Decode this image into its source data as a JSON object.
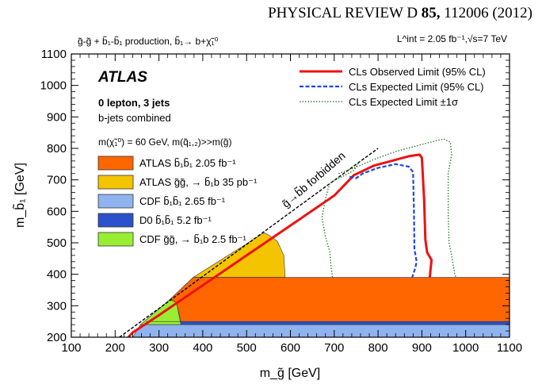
{
  "header": {
    "journal": "PHYSICAL REVIEW D",
    "volume": "85,",
    "article": "112006 (2012)"
  },
  "chart_data": {
    "type": "area",
    "process_label": "g̃-g̃ + b̃₁-b̃₁ production, b̃₁→ b+χ̃₁⁰",
    "lumi_label": "L^int = 2.05 fb⁻¹,√s=7 TeV",
    "experiment": "ATLAS",
    "selection_1": "0 lepton, 3 jets",
    "selection_2": "b-jets combined",
    "assumption": "m(χ̃₁⁰) = 60 GeV, m(q̃₁,₂)>>m(g̃)",
    "forbidden_label": "g̃→b̃b forbidden",
    "xlabel": "m_g̃ [GeV]",
    "ylabel": "m_b̃₁ [GeV]",
    "xlim": [
      100,
      1100
    ],
    "ylim": [
      200,
      1100
    ],
    "x_ticks": [
      100,
      200,
      300,
      400,
      500,
      600,
      700,
      800,
      900,
      1000,
      1100
    ],
    "y_ticks": [
      200,
      300,
      400,
      500,
      600,
      700,
      800,
      900,
      1000,
      1100
    ],
    "line_series": [
      {
        "name": "CLs Observed Limit (95% CL)",
        "color": "#ee1111",
        "dash": "solid",
        "points": [
          [
            230,
            200
          ],
          [
            240,
            215
          ],
          [
            300,
            270
          ],
          [
            400,
            365
          ],
          [
            500,
            460
          ],
          [
            600,
            555
          ],
          [
            700,
            650
          ],
          [
            745,
            715
          ],
          [
            760,
            725
          ],
          [
            790,
            745
          ],
          [
            830,
            760
          ],
          [
            870,
            775
          ],
          [
            895,
            780
          ],
          [
            900,
            770
          ],
          [
            905,
            640
          ],
          [
            908,
            510
          ],
          [
            912,
            470
          ],
          [
            922,
            445
          ],
          [
            920,
            420
          ],
          [
            918,
            390
          ]
        ]
      },
      {
        "name": "CLs Expected Limit (95% CL)",
        "color": "#2244dd",
        "dash": "dashed",
        "points": [
          [
            735,
            710
          ],
          [
            750,
            705
          ],
          [
            765,
            720
          ],
          [
            800,
            738
          ],
          [
            840,
            750
          ],
          [
            870,
            742
          ],
          [
            880,
            725
          ],
          [
            882,
            600
          ],
          [
            883,
            480
          ],
          [
            888,
            440
          ],
          [
            885,
            420
          ],
          [
            878,
            390
          ]
        ]
      },
      {
        "name": "CLs Expected Limit ±1σ",
        "color": "#227722",
        "dash": "dotted",
        "points": [
          [
            710,
            720
          ],
          [
            740,
            735
          ],
          [
            800,
            770
          ],
          [
            840,
            790
          ],
          [
            880,
            805
          ],
          [
            920,
            820
          ],
          [
            950,
            830
          ],
          [
            965,
            820
          ],
          [
            968,
            780
          ],
          [
            960,
            720
          ],
          [
            960,
            600
          ],
          [
            962,
            500
          ],
          [
            968,
            460
          ],
          [
            975,
            400
          ],
          [
            978,
            390
          ]
        ]
      },
      {
        "name": "CLs Expected Limit ±1σ (lower)",
        "color": "#227722",
        "dash": "dotted",
        "points": [
          [
            758,
            760
          ],
          [
            745,
            730
          ],
          [
            690,
            690
          ],
          [
            680,
            640
          ],
          [
            672,
            580
          ],
          [
            680,
            520
          ],
          [
            690,
            470
          ],
          [
            693,
            420
          ],
          [
            696,
            390
          ]
        ]
      }
    ],
    "regions": [
      {
        "name": "CDF b̃₁b̃₁ 2.65 fb⁻¹",
        "color": "#8fb3ee",
        "points": [
          [
            240,
            200
          ],
          [
            1100,
            200
          ],
          [
            1100,
            240
          ],
          [
            258,
            240
          ]
        ]
      },
      {
        "name": "D0 b̃₁b̃₁ 5.2 fb⁻¹",
        "color": "#2a52cc",
        "points": [
          [
            258,
            240
          ],
          [
            1100,
            240
          ],
          [
            1100,
            250
          ],
          [
            270,
            250
          ]
        ]
      },
      {
        "name": "CDF g̃g̃, → b̃₁b 2.5 fb⁻¹",
        "color": "#99ee33",
        "points": [
          [
            258,
            240
          ],
          [
            350,
            240
          ],
          [
            340,
            310
          ],
          [
            325,
            320
          ]
        ]
      },
      {
        "name": "ATLAS g̃g̃, → b̃₁b 35 pb⁻¹",
        "color": "#f5c400",
        "points": [
          [
            378,
            390
          ],
          [
            588,
            390
          ],
          [
            585,
            460
          ],
          [
            570,
            505
          ],
          [
            550,
            525
          ],
          [
            540,
            532
          ]
        ]
      },
      {
        "name": "ATLAS b̃₁b̃₁ 2.05 fb⁻¹",
        "color": "#ff6600",
        "points": [
          [
            270,
            250
          ],
          [
            1100,
            250
          ],
          [
            1100,
            390
          ],
          [
            378,
            390
          ],
          [
            325,
            320
          ],
          [
            340,
            310
          ],
          [
            350,
            250
          ]
        ]
      }
    ],
    "forbidden_boundary": [
      [
        210,
        200
      ],
      [
        800,
        800
      ]
    ],
    "legend_top_right": [
      {
        "label": "CLs Observed Limit (95% CL)",
        "style": "solid",
        "color": "#ee1111"
      },
      {
        "label": "CLs Expected Limit (95% CL)",
        "style": "dashed",
        "color": "#2244dd"
      },
      {
        "label": "CLs Expected Limit ±1σ",
        "style": "dotted",
        "color": "#227722"
      }
    ],
    "legend_left": [
      {
        "label": "ATLAS b̃₁b̃₁ 2.05 fb⁻¹",
        "color": "#ff6600"
      },
      {
        "label": "ATLAS g̃g̃, → b̃₁b 35 pb⁻¹",
        "color": "#f5c400"
      },
      {
        "label": "CDF b̃₁b̃₁ 2.65 fb⁻¹",
        "color": "#8fb3ee"
      },
      {
        "label": "D0 b̃₁b̃₁ 5.2 fb⁻¹",
        "color": "#2a52cc"
      },
      {
        "label": "CDF g̃g̃, → b̃₁b 2.5 fb⁻¹",
        "color": "#99ee33"
      }
    ]
  }
}
